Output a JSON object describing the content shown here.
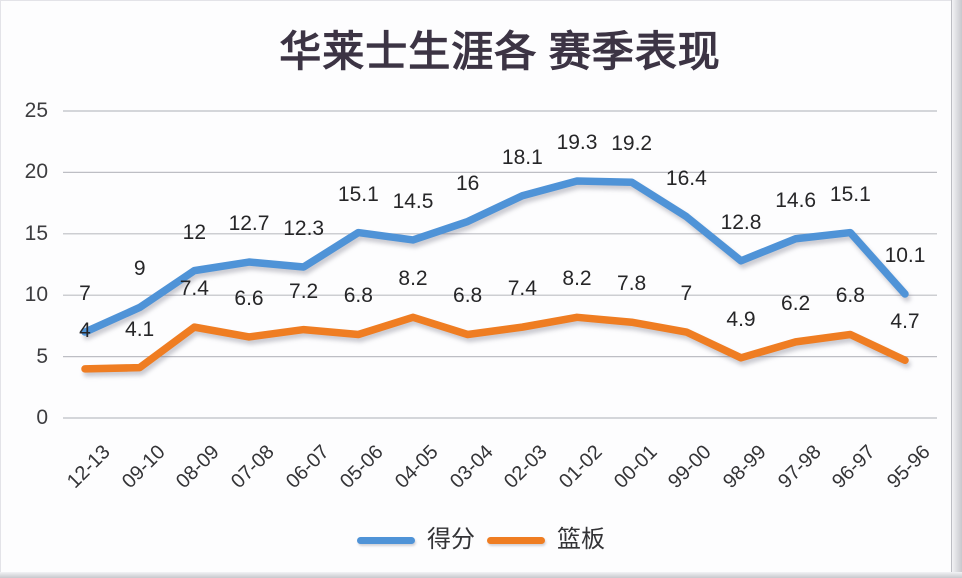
{
  "frame": {
    "edge_color": "#c7c8cd"
  },
  "chart_data": {
    "type": "line",
    "title": "华莱士生涯各 赛季表现",
    "categories": [
      "12-13",
      "09-10",
      "08-09",
      "07-08",
      "06-07",
      "05-06",
      "04-05",
      "03-04",
      "02-03",
      "01-02",
      "00-01",
      "99-00",
      "98-99",
      "97-98",
      "96-97",
      "95-96"
    ],
    "series": [
      {
        "name": "得分",
        "color": "#4f93d7",
        "values": [
          7,
          9,
          12,
          12.7,
          12.3,
          15.1,
          14.5,
          16,
          18.1,
          19.3,
          19.2,
          16.4,
          12.8,
          14.6,
          15.1,
          10.1
        ]
      },
      {
        "name": "篮板",
        "color": "#ef7d22",
        "values": [
          4,
          4.1,
          7.4,
          6.6,
          7.2,
          6.8,
          8.2,
          6.8,
          7.4,
          8.2,
          7.8,
          7,
          4.9,
          6.2,
          6.8,
          4.7
        ]
      }
    ],
    "ylim": [
      0,
      25
    ],
    "yticks": [
      0,
      5,
      10,
      15,
      20,
      25
    ],
    "grid": true,
    "gridline_color": "#bdbec4",
    "legend_position": "bottom",
    "xlabel": "",
    "ylabel": ""
  }
}
